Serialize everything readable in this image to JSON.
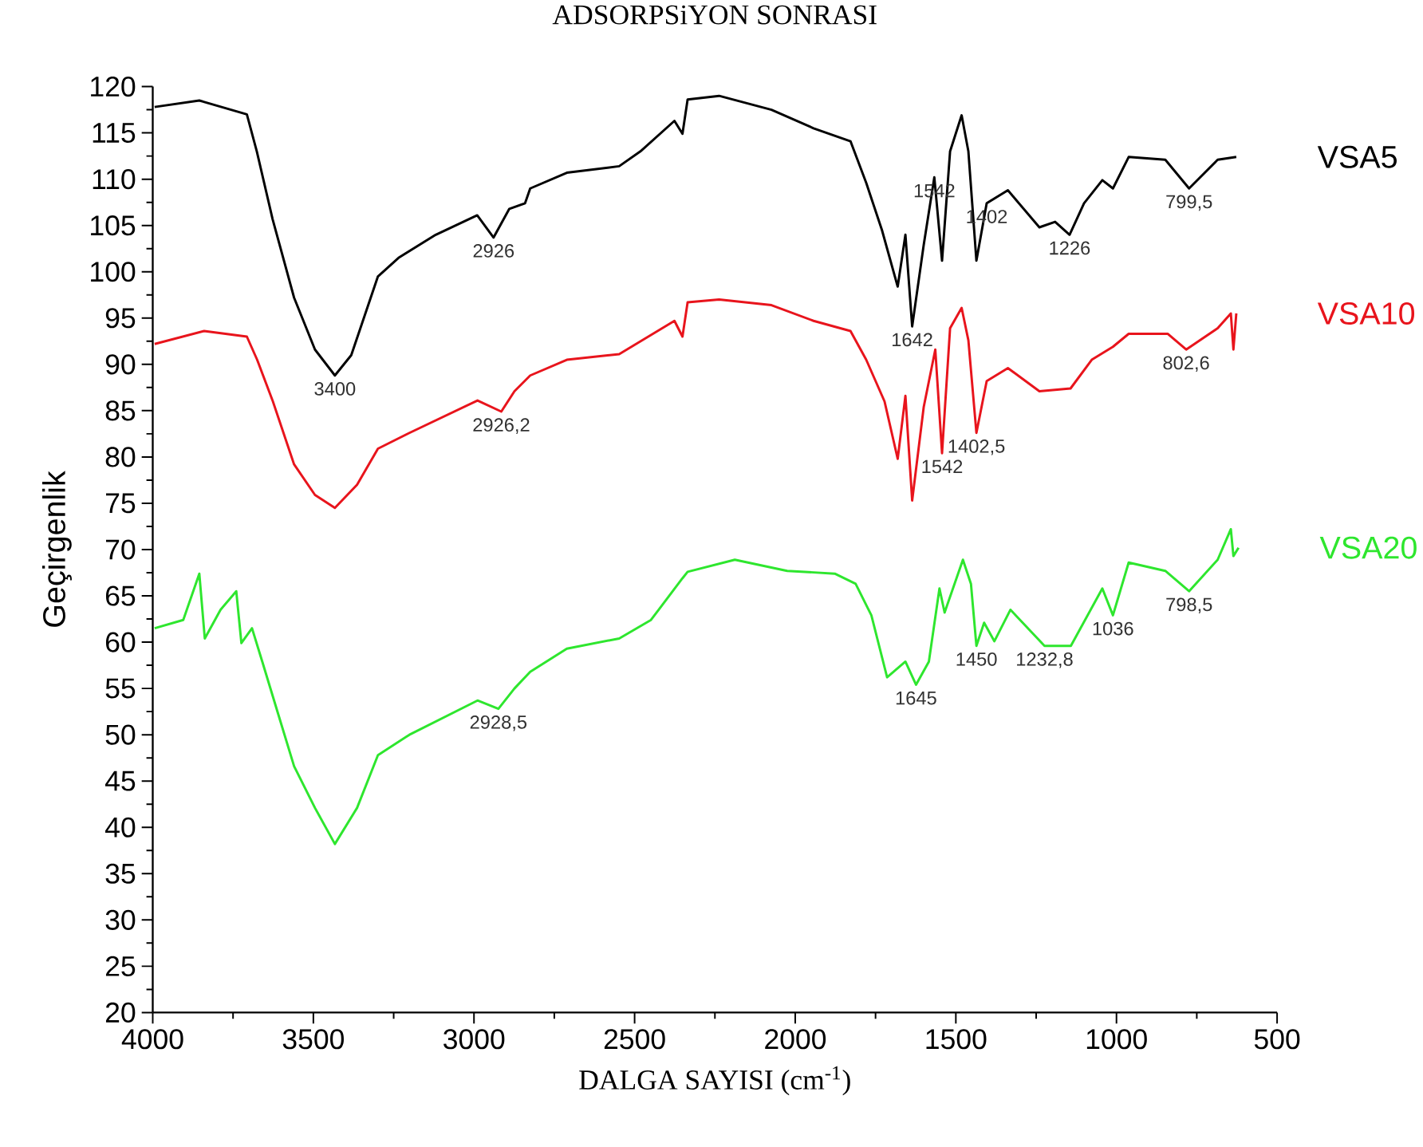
{
  "chart_data": {
    "type": "line",
    "title": "ADSORPSiYON  SONRASI",
    "xlabel": "DALGA SAYISI (cm$^{-1}$)",
    "ylabel": "Geçirgenlik",
    "xlim": [
      4000,
      500
    ],
    "xticks": [
      4000,
      3500,
      3000,
      2500,
      2000,
      1500,
      1000,
      500
    ],
    "ylim": [
      20,
      120
    ],
    "yticks": [
      20,
      25,
      30,
      35,
      40,
      45,
      50,
      55,
      60,
      65,
      70,
      75,
      80,
      85,
      90,
      95,
      100,
      105,
      110,
      115,
      120
    ],
    "series": [
      {
        "name": "VSA5",
        "color": "#000000",
        "x": [
          3994,
          3855,
          3707,
          3676,
          3627,
          3560,
          3495,
          3433,
          3382,
          3299,
          3235,
          3119,
          2990,
          2939,
          2890,
          2841,
          2825,
          2711,
          2548,
          2482,
          2376,
          2351,
          2335,
          2237,
          2074,
          1943,
          1828,
          1779,
          1730,
          1681,
          1657,
          1636,
          1600,
          1567,
          1543,
          1518,
          1482,
          1461,
          1436,
          1404,
          1338,
          1240,
          1191,
          1146,
          1101,
          1044,
          1011,
          962,
          848,
          774,
          685,
          627
        ],
        "values": [
          117.8,
          118.5,
          117,
          113,
          105.7,
          97.2,
          91.6,
          88.8,
          91,
          99.5,
          101.5,
          104,
          106.1,
          103.7,
          106.8,
          107.4,
          109,
          110.7,
          111.4,
          113,
          116.3,
          114.9,
          118.6,
          119,
          117.5,
          115.5,
          114.1,
          109.6,
          104.5,
          98.4,
          104,
          94.1,
          102.9,
          110.2,
          101.2,
          113,
          116.9,
          113,
          101.2,
          107.4,
          108.8,
          104.8,
          105.4,
          104,
          107.4,
          109.9,
          109,
          112.4,
          112.1,
          109,
          112.1,
          112.4
        ]
      },
      {
        "name": "VSA10",
        "color": "#e8141c",
        "x": [
          3994,
          3840,
          3707,
          3675,
          3626,
          3560,
          3495,
          3433,
          3364,
          3299,
          3201,
          2989,
          2915,
          2874,
          2825,
          2711,
          2548,
          2376,
          2351,
          2335,
          2237,
          2074,
          1943,
          1828,
          1779,
          1722,
          1681,
          1657,
          1636,
          1600,
          1564,
          1543,
          1518,
          1482,
          1461,
          1436,
          1404,
          1338,
          1240,
          1143,
          1077,
          1011,
          962,
          840,
          783,
          685,
          644,
          636,
          627
        ],
        "values": [
          92.2,
          93.6,
          93,
          90.5,
          86,
          79.2,
          75.9,
          74.5,
          77,
          80.9,
          82.6,
          86.1,
          84.9,
          87.1,
          88.8,
          90.5,
          91.1,
          94.7,
          93,
          96.7,
          97,
          96.4,
          94.7,
          93.6,
          90.5,
          86,
          79.8,
          86.6,
          75.3,
          85.4,
          91.6,
          80.4,
          93.9,
          96.1,
          92.6,
          82.6,
          88.2,
          89.6,
          87.1,
          87.4,
          90.5,
          91.9,
          93.3,
          93.3,
          91.6,
          93.9,
          95.5,
          91.6,
          95.5
        ]
      },
      {
        "name": "VSA20",
        "color": "#2ee62e",
        "x": [
          3994,
          3905,
          3855,
          3838,
          3789,
          3740,
          3724,
          3691,
          3659,
          3610,
          3560,
          3495,
          3433,
          3364,
          3299,
          3201,
          2989,
          2924,
          2874,
          2825,
          2711,
          2548,
          2449,
          2351,
          2335,
          2188,
          2025,
          1877,
          1812,
          1763,
          1714,
          1657,
          1624,
          1584,
          1551,
          1535,
          1478,
          1453,
          1436,
          1412,
          1380,
          1330,
          1224,
          1142,
          1044,
          1011,
          962,
          848,
          774,
          685,
          644,
          636,
          620
        ],
        "values": [
          61.5,
          62.4,
          67.4,
          60.4,
          63.5,
          65.5,
          59.9,
          61.5,
          57.9,
          52.3,
          46.6,
          42.1,
          38.2,
          42.1,
          47.8,
          50,
          53.7,
          52.8,
          55,
          56.8,
          59.3,
          60.4,
          62.4,
          66.9,
          67.6,
          68.9,
          67.7,
          67.4,
          66.3,
          62.9,
          56.2,
          57.9,
          55.4,
          57.9,
          65.8,
          63.2,
          68.9,
          66.3,
          59.6,
          62.1,
          60.1,
          63.5,
          59.6,
          59.6,
          65.8,
          62.9,
          68.6,
          67.7,
          65.5,
          68.9,
          72.2,
          69.3,
          70.2
        ]
      }
    ],
    "annotations": [
      {
        "text": "3400",
        "x": 3433,
        "y": 88.8
      },
      {
        "text": "2926",
        "x": 2939,
        "y": 103.7
      },
      {
        "text": "1642",
        "x": 1636,
        "y": 94.1
      },
      {
        "text": "1542",
        "x": 1567,
        "y": 110.2
      },
      {
        "text": "1402",
        "x": 1404,
        "y": 107.4
      },
      {
        "text": "1226",
        "x": 1146,
        "y": 104
      },
      {
        "text": "799,5",
        "x": 774,
        "y": 109
      },
      {
        "text": "2926,2",
        "x": 2915,
        "y": 84.9
      },
      {
        "text": "1542",
        "x": 1543,
        "y": 80.4
      },
      {
        "text": "1402,5",
        "x": 1436,
        "y": 82.6
      },
      {
        "text": "802,6",
        "x": 783,
        "y": 91.6
      },
      {
        "text": "2928,5",
        "x": 2924,
        "y": 52.8
      },
      {
        "text": "1645",
        "x": 1624,
        "y": 55.4
      },
      {
        "text": "1450",
        "x": 1436,
        "y": 59.6
      },
      {
        "text": "1232,8",
        "x": 1224,
        "y": 59.6
      },
      {
        "text": "1036",
        "x": 1011,
        "y": 62.9
      },
      {
        "text": "798,5",
        "x": 774,
        "y": 65.5
      }
    ]
  }
}
